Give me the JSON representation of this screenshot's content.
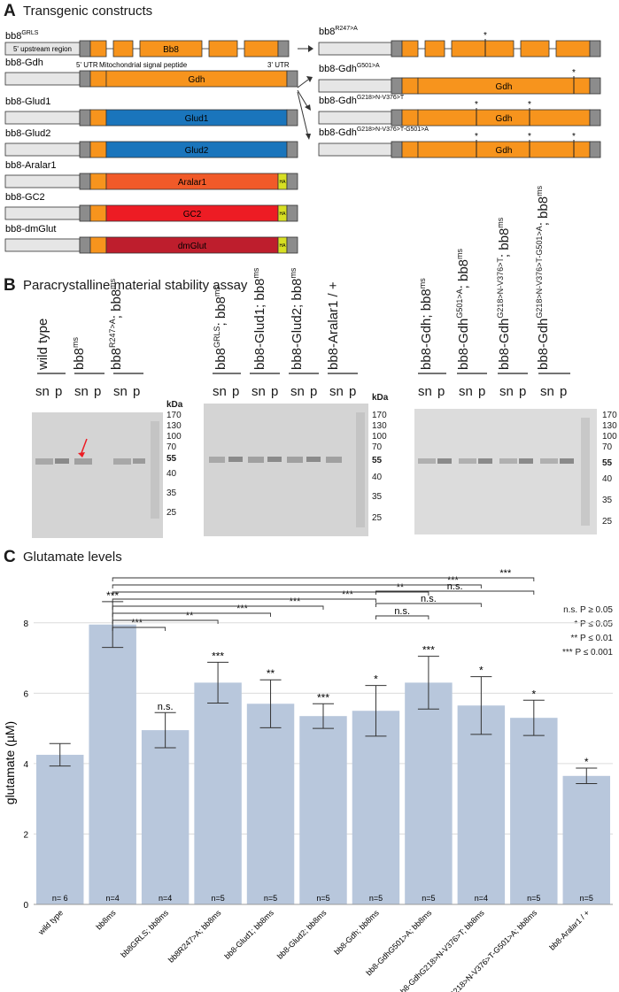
{
  "panels": {
    "a": {
      "letter": "A",
      "title": "Transgenic constructs"
    },
    "b": {
      "letter": "B",
      "title": "Paracrystalline material stability assay"
    },
    "c": {
      "letter": "C",
      "title": "Glutamate levels"
    }
  },
  "constructs": {
    "bb8_label": "bb8",
    "bb8_sup": "GRLS",
    "upstream_label": "5' upstream region",
    "gene_bb8": "Bb8",
    "utr5_label": "5' UTR",
    "mito_label": "Mitochondrial signal peptide",
    "utr3_label": "3' UTR",
    "left": [
      {
        "label": "bb8-Gdh",
        "gene": "Gdh",
        "color": "#f7941d"
      },
      {
        "label": "bb8-Glud1",
        "gene": "Glud1",
        "color": "#1a75bc"
      },
      {
        "label": "bb8-Glud2",
        "gene": "Glud2",
        "color": "#1a75bc"
      },
      {
        "label": "bb8-Aralar1",
        "gene": "Aralar1",
        "color": "#f15a29",
        "tag": "HA"
      },
      {
        "label": "bb8-GC2",
        "gene": "GC2",
        "color": "#ed1c24",
        "tag": "HA"
      },
      {
        "label": "bb8-dmGlut",
        "gene": "dmGlut",
        "color": "#be1e2d",
        "tag": "HA"
      }
    ],
    "right": [
      {
        "label": "bb8",
        "sup": "R247>A",
        "gene": ""
      },
      {
        "label": "bb8-Gdh",
        "sup": "G501>A",
        "gene": "Gdh"
      },
      {
        "label": "bb8-Gdh",
        "sup": "G218>N-V376>T",
        "gene": "Gdh"
      },
      {
        "label": "bb8-Gdh",
        "sup": "G218>N-V376>T-G501>A",
        "gene": "Gdh"
      }
    ],
    "mutation_mark": "*"
  },
  "gels": {
    "kda_label": "kDa",
    "ladder": [
      "170",
      "130",
      "100",
      "70",
      "55",
      "40",
      "35",
      "25"
    ],
    "sn": "sn",
    "p": "p",
    "gel1_lanes": [
      "wild type",
      "bb8ms",
      "bb8R247>A; bb8ms"
    ],
    "gel2_lanes": [
      "bb8GRLS; bb8ms",
      "bb8-Glud1; bb8ms",
      "bb8-Glud2; bb8ms",
      "bb8-Aralar1 / +"
    ],
    "gel3_lanes": [
      "bb8-Gdh; bb8ms",
      "bb8-GdhG501>A; bb8ms",
      "bb8-GdhG218>N-V376>T; bb8ms",
      "bb8-GdhG218>N-V376>T-G501>A; bb8ms"
    ]
  },
  "legend": {
    "ns": "n.s. P ≥ 0.05",
    "one": "* P ≤ 0.05",
    "two": "** P ≤ 0.01",
    "three": "*** P ≤ 0.001"
  },
  "chart_data": {
    "type": "bar",
    "title": "Glutamate levels",
    "ylabel": "glutamate (µM)",
    "xlabel": "",
    "ylim": [
      0,
      9
    ],
    "yticks": [
      0,
      2,
      4,
      6,
      8
    ],
    "grid": true,
    "bar_color": "#b8c7dc",
    "categories": [
      "wild type",
      "bb8ms",
      "bb8GRLS; bb8ms",
      "bb8R247>A; bb8ms",
      "bb8-Glud1; bb8ms",
      "bb8-Glud2; bb8ms",
      "bb8-Gdh; bb8ms",
      "bb8-GdhG501>A; bb8ms",
      "bb8-GdhG218>N-V376>T; bb8ms",
      "bb8-GdhG218>N-V376>T-G501>A; bb8ms",
      "bb8-Aralar1 / +"
    ],
    "values": [
      4.25,
      7.95,
      4.95,
      6.3,
      5.7,
      5.35,
      5.5,
      6.3,
      5.65,
      5.3,
      3.65
    ],
    "errors": [
      0.32,
      0.65,
      0.5,
      0.58,
      0.68,
      0.35,
      0.72,
      0.75,
      0.82,
      0.5,
      0.22
    ],
    "significance": [
      "",
      "***",
      "n.s.",
      "***",
      "**",
      "***",
      "*",
      "***",
      "*",
      "*",
      "*"
    ],
    "n_labels": [
      "n= 6",
      "n=4",
      "n=4",
      "n=5",
      "n=5",
      "n=5",
      "n=5",
      "n=5",
      "n=4",
      "n=5",
      "n=5"
    ],
    "brackets": [
      {
        "from": 1,
        "to": 2,
        "label": "***"
      },
      {
        "from": 1,
        "to": 3,
        "label": "**"
      },
      {
        "from": 1,
        "to": 4,
        "label": "***"
      },
      {
        "from": 1,
        "to": 5,
        "label": "***"
      },
      {
        "from": 1,
        "to": 6,
        "label": "***"
      },
      {
        "from": 1,
        "to": 7,
        "label": "**"
      },
      {
        "from": 1,
        "to": 8,
        "label": "***"
      },
      {
        "from": 1,
        "to": 9,
        "label": "***"
      },
      {
        "from": 6,
        "to": 7,
        "label": "n.s."
      },
      {
        "from": 6,
        "to": 8,
        "label": "n.s."
      },
      {
        "from": 6,
        "to": 9,
        "label": "n.s."
      }
    ]
  }
}
